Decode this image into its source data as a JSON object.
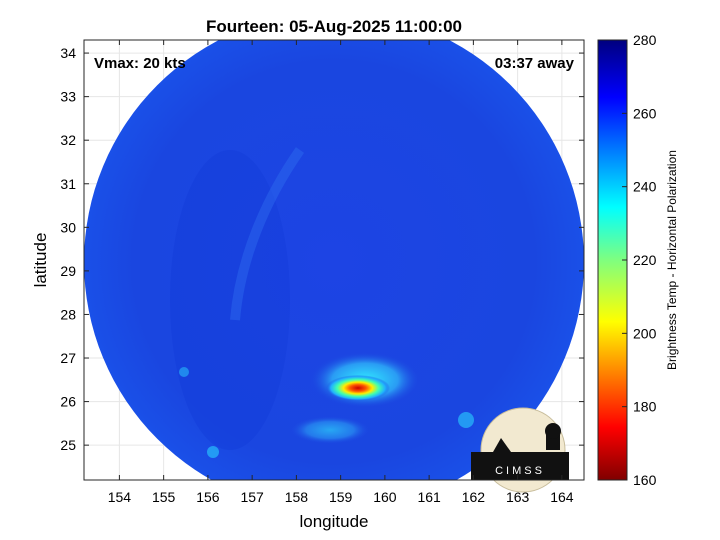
{
  "title": "Fourteen: 05-Aug-2025 11:00:00",
  "annotations": {
    "vmax": "Vmax: 20 kts",
    "time_away": "03:37 away"
  },
  "axes": {
    "xlabel": "longitude",
    "ylabel": "latitude",
    "xlim": [
      153.2,
      164.5
    ],
    "ylim": [
      24.2,
      34.3
    ],
    "xticks": [
      "154",
      "155",
      "156",
      "157",
      "158",
      "159",
      "160",
      "161",
      "162",
      "163",
      "164"
    ],
    "yticks": [
      "25",
      "26",
      "27",
      "28",
      "29",
      "30",
      "31",
      "32",
      "33",
      "34"
    ],
    "grid": true
  },
  "colorbar": {
    "label": "Brightness Temp - Horizontal Polarization",
    "range": [
      160,
      280
    ],
    "ticks": [
      "160",
      "180",
      "200",
      "220",
      "240",
      "260",
      "280"
    ],
    "colormap": "jet"
  },
  "swath": {
    "center_lon": 158.8,
    "center_lat": 29.1,
    "background_temp": 262,
    "warm_core": {
      "lon": 159.3,
      "lat": 26.3,
      "min_temp": 185
    }
  },
  "logo": {
    "text": "CIMSS"
  },
  "colors": {
    "swath_blue": "#1a46e0",
    "axis": "#262626",
    "grid": "#e6e6e6"
  }
}
